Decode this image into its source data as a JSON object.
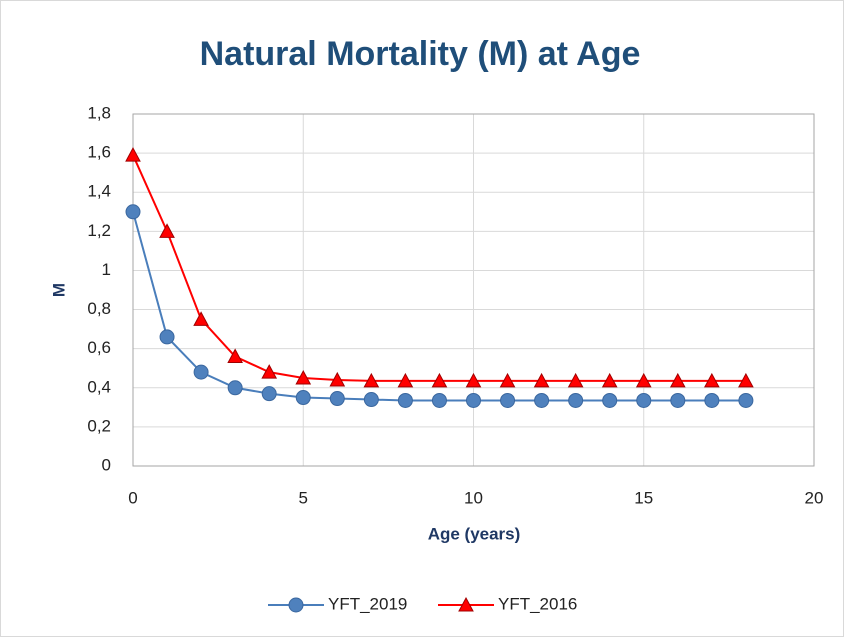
{
  "chart_data": {
    "type": "line",
    "title": "Natural Mortality (M) at Age",
    "xlabel": "Age (years)",
    "ylabel": "M",
    "x": [
      0,
      1,
      2,
      3,
      4,
      5,
      6,
      7,
      8,
      9,
      10,
      11,
      12,
      13,
      14,
      15,
      16,
      17,
      18
    ],
    "series": [
      {
        "name": "YFT_2019",
        "color": "#4a7ebb",
        "marker": "circle",
        "values": [
          1.3,
          0.66,
          0.48,
          0.4,
          0.37,
          0.35,
          0.345,
          0.34,
          0.335,
          0.335,
          0.335,
          0.335,
          0.335,
          0.335,
          0.335,
          0.335,
          0.335,
          0.335,
          0.335
        ]
      },
      {
        "name": "YFT_2016",
        "color": "#ff0000",
        "marker": "triangle",
        "values": [
          1.59,
          1.2,
          0.75,
          0.56,
          0.48,
          0.45,
          0.44,
          0.435,
          0.435,
          0.435,
          0.435,
          0.435,
          0.435,
          0.435,
          0.435,
          0.435,
          0.435,
          0.435,
          0.435
        ]
      }
    ],
    "xlim": [
      0,
      20
    ],
    "xticks": [
      0,
      5,
      10,
      15,
      20
    ],
    "ylim": [
      0,
      1.8
    ],
    "yticks": [
      0,
      {
        "value": 0.2,
        "label": "0,2"
      },
      {
        "value": 0.4,
        "label": "0,4"
      },
      {
        "value": 0.6,
        "label": "0,6"
      },
      {
        "value": 0.8,
        "label": "0,8"
      },
      1,
      {
        "value": 1.2,
        "label": "1,2"
      },
      {
        "value": 1.4,
        "label": "1,4"
      },
      {
        "value": 1.6,
        "label": "1,6"
      },
      {
        "value": 1.8,
        "label": "1,8"
      }
    ],
    "grid": true,
    "legend": "bottom"
  }
}
